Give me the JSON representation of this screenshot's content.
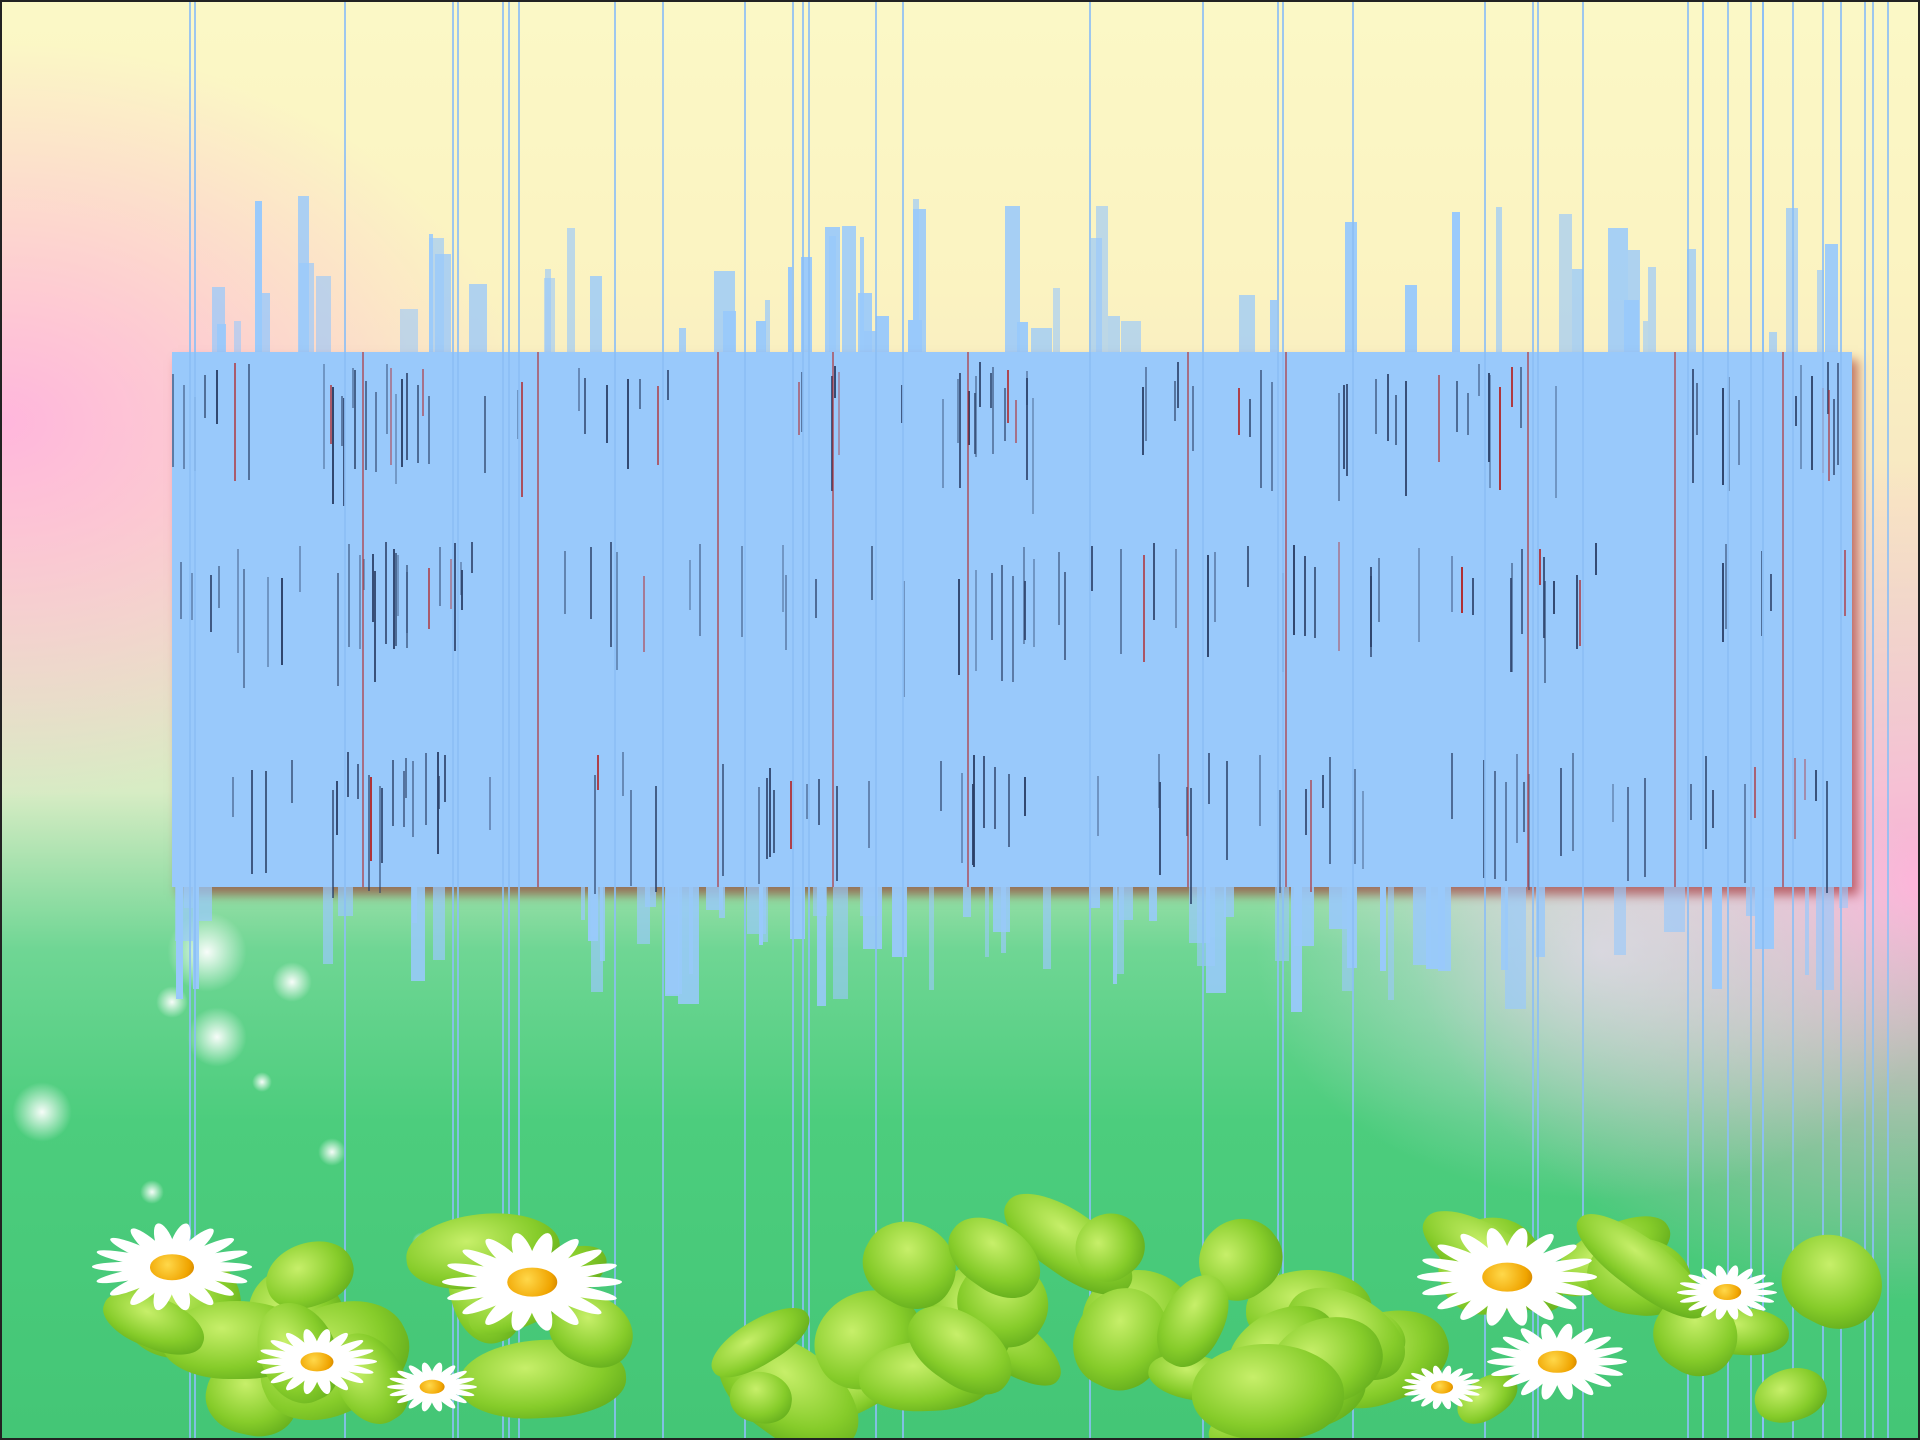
{
  "slide": {
    "theme": "spring-meadow",
    "colors": {
      "sky_top": "#fbf8c6",
      "pink_edge": "#ffb6dc",
      "meadow_green": "#4ccd7d",
      "banner_fill": "#99c9fb",
      "banner_shadow": "#961414",
      "daisy_petal": "#ffffff",
      "daisy_center": "#f0a400"
    },
    "banner": {
      "text": ""
    },
    "decoration_icons": [
      "daisy-icon",
      "leaf-icon",
      "sparkle-icon"
    ]
  }
}
